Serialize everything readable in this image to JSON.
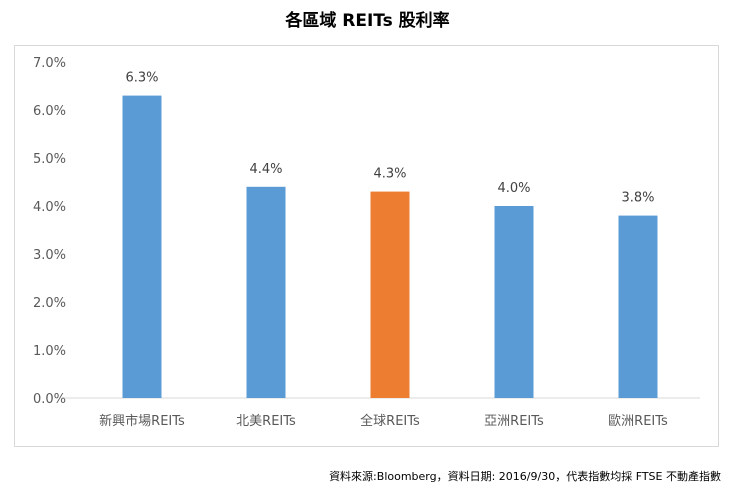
{
  "chart_data": {
    "type": "bar",
    "title": "各區域 REITs 股利率",
    "categories": [
      "新興市場REITs",
      "北美REITs",
      "全球REITs",
      "亞洲REITs",
      "歐洲REITs"
    ],
    "values": [
      6.3,
      4.4,
      4.3,
      4.0,
      3.8
    ],
    "value_labels": [
      "6.3%",
      "4.4%",
      "4.3%",
      "4.0%",
      "3.8%"
    ],
    "y_ticks": [
      "0.0%",
      "1.0%",
      "2.0%",
      "3.0%",
      "4.0%",
      "5.0%",
      "6.0%",
      "7.0%"
    ],
    "ylim": [
      0,
      7
    ],
    "grid": false,
    "colors": {
      "default": "#5b9bd5",
      "highlight": "#ed7d31",
      "highlight_index": 2
    }
  },
  "source_note": "資料來源:Bloomberg，資料日期: 2016/9/30，代表指數均採 FTSE 不動產指數"
}
